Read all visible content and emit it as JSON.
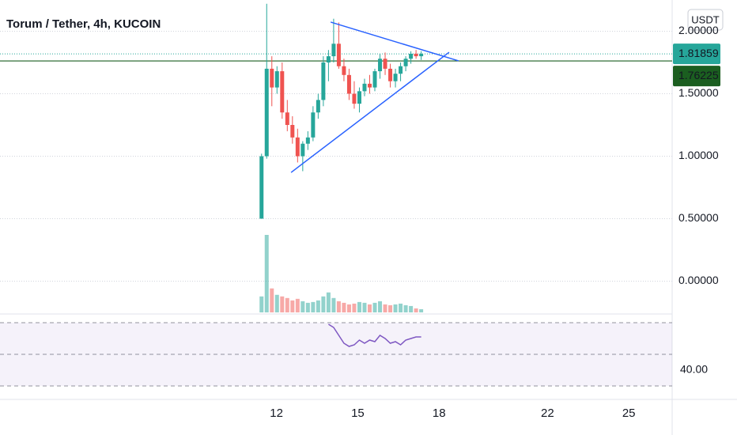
{
  "chart_data": {
    "type": "candlestick",
    "title": "Torum / Tether, 4h, KUCOIN",
    "currency": "USDT",
    "x": [
      11.45,
      11.64,
      11.83,
      12.02,
      12.21,
      12.4,
      12.59,
      12.78,
      12.97,
      13.16,
      13.35,
      13.54,
      13.73,
      13.92,
      14.11,
      14.3,
      14.49,
      14.68,
      14.87,
      15.06,
      15.25,
      15.44,
      15.63,
      15.82,
      16.01,
      16.2,
      16.39,
      16.58,
      16.77,
      16.96,
      17.15,
      17.34
    ],
    "open": [
      0.5,
      1.0,
      1.7,
      1.55,
      1.68,
      1.35,
      1.25,
      1.15,
      1.0,
      1.1,
      1.15,
      1.35,
      1.45,
      1.75,
      1.8,
      1.9,
      1.72,
      1.65,
      1.5,
      1.42,
      1.52,
      1.58,
      1.55,
      1.68,
      1.78,
      1.7,
      1.6,
      1.66,
      1.72,
      1.78,
      1.82,
      1.8
    ],
    "high": [
      1.02,
      2.22,
      1.8,
      1.72,
      1.75,
      1.45,
      1.32,
      1.22,
      1.12,
      1.2,
      1.4,
      1.5,
      1.8,
      1.85,
      2.1,
      2.07,
      1.78,
      1.7,
      1.6,
      1.55,
      1.62,
      1.65,
      1.7,
      1.82,
      1.83,
      1.74,
      1.7,
      1.75,
      1.8,
      1.84,
      1.85,
      1.84
    ],
    "low": [
      0.5,
      0.98,
      1.4,
      1.5,
      1.3,
      1.2,
      1.1,
      0.95,
      0.88,
      1.05,
      1.12,
      1.3,
      1.4,
      1.6,
      1.75,
      1.7,
      1.6,
      1.45,
      1.38,
      1.35,
      1.48,
      1.5,
      1.52,
      1.62,
      1.65,
      1.55,
      1.55,
      1.6,
      1.68,
      1.74,
      1.78,
      1.77
    ],
    "close": [
      1.0,
      1.7,
      1.55,
      1.68,
      1.35,
      1.25,
      1.15,
      1.0,
      1.1,
      1.15,
      1.35,
      1.45,
      1.75,
      1.8,
      1.9,
      1.72,
      1.65,
      1.5,
      1.42,
      1.52,
      1.58,
      1.55,
      1.68,
      1.78,
      1.7,
      1.6,
      1.66,
      1.72,
      1.78,
      1.82,
      1.8,
      1.82
    ],
    "volume": [
      20,
      97,
      30,
      22,
      20,
      18,
      15,
      17,
      14,
      12,
      13,
      15,
      20,
      25,
      18,
      14,
      12,
      10,
      11,
      13,
      12,
      10,
      12,
      14,
      10,
      9,
      10,
      11,
      9,
      8,
      5,
      4
    ],
    "up_color": "#26a69a",
    "down_color": "#ef5350",
    "xlim": [
      1.8,
      26.6
    ],
    "xticks": [
      12,
      15,
      18,
      22,
      25
    ],
    "ylim": [
      -0.25,
      2.25
    ],
    "yticks": [
      {
        "value": 0,
        "label": "0.00000"
      },
      {
        "value": 0.5,
        "label": "0.50000"
      },
      {
        "value": 1,
        "label": "1.00000"
      },
      {
        "value": 1.5,
        "label": "1.50000"
      },
      {
        "value": 2,
        "label": "2.00000"
      }
    ],
    "last_price": 1.81859,
    "last_price_color": "#26a69a",
    "level_price": 1.76225,
    "level_color": "#1b5e20",
    "trendlines": [
      {
        "color": "#2962ff",
        "x": [
          14.0,
          18.72
        ],
        "values": [
          2.073,
          1.763
        ]
      },
      {
        "color": "#2962ff",
        "x": [
          12.54,
          18.37
        ],
        "values": [
          0.87,
          1.832
        ]
      }
    ],
    "rsi": {
      "color": "#7e57c2",
      "values": [
        null,
        null,
        null,
        null,
        null,
        null,
        null,
        null,
        null,
        null,
        null,
        null,
        null,
        69,
        67,
        62,
        57,
        55,
        56,
        59,
        57,
        59,
        58,
        62,
        60,
        57,
        58,
        56,
        59,
        60,
        61,
        61
      ],
      "ylim": [
        24,
        74
      ],
      "yticks": [
        {
          "value": 40,
          "label": "40.00"
        }
      ],
      "levels": [
        30,
        50,
        70
      ]
    }
  }
}
